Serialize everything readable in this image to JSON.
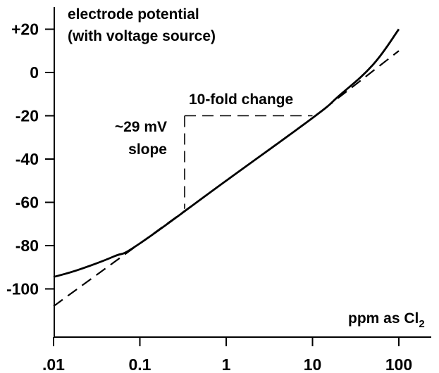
{
  "chart_data": {
    "type": "line",
    "title": "",
    "ylabel": "electrode potential\n(with voltage source)",
    "ylabel_lines": [
      "electrode potential",
      "(with voltage source)"
    ],
    "xlabel": "ppm as Cl2",
    "xlabel_main": "ppm as Cl",
    "xlabel_sub": "2",
    "x_scale": "log",
    "xlim": [
      0.01,
      250
    ],
    "ylim": [
      -120,
      30
    ],
    "x_ticks": [
      {
        "value": 0.01,
        "label": ".01"
      },
      {
        "value": 0.1,
        "label": "0.1"
      },
      {
        "value": 1,
        "label": "1"
      },
      {
        "value": 10,
        "label": "10"
      },
      {
        "value": 100,
        "label": "100"
      }
    ],
    "y_ticks": [
      {
        "value": 20,
        "label": "+20"
      },
      {
        "value": 0,
        "label": "0"
      },
      {
        "value": -20,
        "label": "-20"
      },
      {
        "value": -40,
        "label": "-40"
      },
      {
        "value": -60,
        "label": "-60"
      },
      {
        "value": -80,
        "label": "-80"
      },
      {
        "value": -100,
        "label": "-100"
      }
    ],
    "grid": false,
    "series": [
      {
        "style": "solid",
        "x": [
          0.01,
          0.02,
          0.05,
          0.1,
          1,
          10,
          20,
          50,
          100
        ],
        "y": [
          -94.5,
          -91,
          -85,
          -79,
          -50,
          -21,
          -11,
          3.5,
          20
        ]
      },
      {
        "style": "dashed",
        "x": [
          0.01,
          0.1,
          1,
          10,
          100
        ],
        "y": [
          -108,
          -79,
          -50,
          -21,
          10
        ]
      }
    ],
    "annotations": {
      "fold_change": {
        "label": "10-fold change",
        "x_start": 0.33,
        "x_end": 10,
        "y_top": -20,
        "y_bottom": -63
      },
      "slope": {
        "label_lines": [
          "~29 mV",
          "slope"
        ]
      }
    }
  }
}
